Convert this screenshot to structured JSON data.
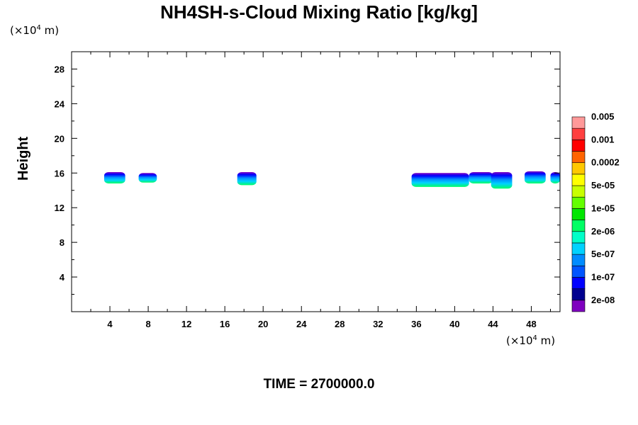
{
  "chart_data": {
    "type": "contour",
    "title": "NH4SH-s-Cloud Mixing Ratio [kg/kg]",
    "ylabel": "Height",
    "x_unit_prefix": "(×10",
    "x_unit_exp": "4",
    "x_unit_suffix": " m)",
    "y_unit_prefix": "(×10",
    "y_unit_exp": "4",
    "y_unit_suffix": " m)",
    "xlim": [
      0,
      51
    ],
    "ylim": [
      0,
      30
    ],
    "x_ticks": [
      4,
      8,
      12,
      16,
      20,
      24,
      28,
      32,
      36,
      40,
      44,
      48
    ],
    "y_ticks": [
      4,
      8,
      12,
      16,
      20,
      24,
      28
    ],
    "time_label": "TIME = 2700000.0",
    "colorbar": {
      "colors": [
        "#7f00bf",
        "#00008f",
        "#0000ff",
        "#0055ff",
        "#008cff",
        "#00d2ff",
        "#00ffc8",
        "#00ff64",
        "#00e600",
        "#64ff00",
        "#c8ff00",
        "#ffff00",
        "#ffc800",
        "#ff6400",
        "#ff0000",
        "#ff4040",
        "#ff9999"
      ],
      "labels": [
        "2e-08",
        "1e-07",
        "5e-07",
        "2e-06",
        "1e-05",
        "5e-05",
        "0.0002",
        "0.001",
        "0.005"
      ]
    },
    "cloud_regions": [
      {
        "x": [
          3.4,
          5.6
        ],
        "y": [
          14.8,
          16.1
        ]
      },
      {
        "x": [
          7.0,
          8.9
        ],
        "y": [
          14.9,
          16.0
        ]
      },
      {
        "x": [
          17.3,
          19.3
        ],
        "y": [
          14.6,
          16.1
        ]
      },
      {
        "x": [
          35.5,
          41.5
        ],
        "y": [
          14.4,
          16.0
        ]
      },
      {
        "x": [
          41.5,
          44.0
        ],
        "y": [
          14.8,
          16.1
        ]
      },
      {
        "x": [
          43.8,
          46.0
        ],
        "y": [
          14.2,
          16.1
        ]
      },
      {
        "x": [
          47.3,
          49.5
        ],
        "y": [
          14.8,
          16.2
        ]
      },
      {
        "x": [
          50.0,
          51.0
        ],
        "y": [
          14.8,
          16.1
        ]
      }
    ]
  }
}
